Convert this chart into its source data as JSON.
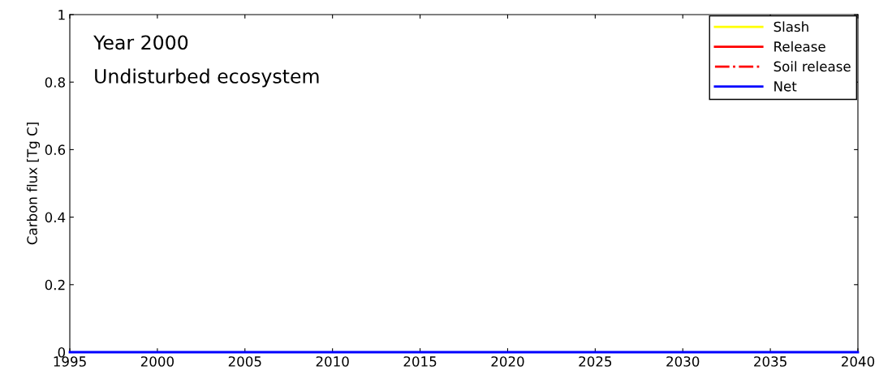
{
  "chart_data": {
    "type": "line",
    "ylabel": "Carbon flux [Tg C]",
    "x": [
      1995,
      2040
    ],
    "series": [
      {
        "name": "Slash",
        "color": "#ffff00",
        "values": [
          null,
          null
        ]
      },
      {
        "name": "Release",
        "color": "#ff0000",
        "values": [
          null,
          null
        ]
      },
      {
        "name": "Soil release",
        "color": "#ff0000",
        "line_style": "dashdot",
        "values": [
          null,
          null
        ]
      },
      {
        "name": "Net",
        "color": "#0000ff",
        "values": [
          0,
          0
        ]
      }
    ],
    "annotations": [
      "Year 2000",
      "Undisturbed ecosystem"
    ],
    "xlim": [
      1995,
      2040
    ],
    "xticks": [
      1995,
      2000,
      2005,
      2010,
      2015,
      2020,
      2025,
      2030,
      2035,
      2040
    ],
    "ylim": [
      0,
      1
    ],
    "yticks": [
      0,
      0.2,
      0.4,
      0.6,
      0.8,
      1
    ],
    "grid": false,
    "legend": "top right"
  }
}
